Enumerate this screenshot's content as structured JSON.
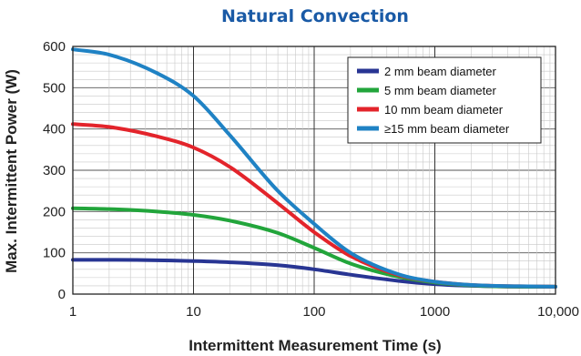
{
  "chart_data": {
    "type": "line",
    "title": "Natural Convection",
    "xlabel": "Intermittent Measurement Time (s)",
    "ylabel": "Max. Intermittent Power (W)",
    "x_scale": "log",
    "xlim": [
      1,
      10000
    ],
    "ylim": [
      0,
      600
    ],
    "x_ticks": [
      1,
      10,
      100,
      1000,
      10000
    ],
    "x_tick_labels": [
      "1",
      "10",
      "100",
      "1000",
      "10,000"
    ],
    "y_ticks": [
      0,
      100,
      200,
      300,
      400,
      500,
      600
    ],
    "y_tick_labels": [
      "0",
      "100",
      "200",
      "300",
      "400",
      "500",
      "600"
    ],
    "grid": true,
    "legend_position": "top-right",
    "colors": {
      "title": "#1a5aa6"
    },
    "series": [
      {
        "name": "2 mm beam diameter",
        "color": "#283593",
        "x": [
          1,
          2,
          5,
          10,
          20,
          50,
          100,
          200,
          500,
          1000,
          2000,
          5000,
          10000
        ],
        "y": [
          83,
          83,
          82,
          80,
          77,
          70,
          60,
          47,
          32,
          24,
          20,
          18,
          18
        ]
      },
      {
        "name": "5 mm beam diameter",
        "color": "#22a53b",
        "x": [
          1,
          2,
          5,
          10,
          20,
          50,
          100,
          200,
          500,
          1000,
          2000,
          5000,
          10000
        ],
        "y": [
          208,
          206,
          200,
          192,
          178,
          148,
          112,
          74,
          42,
          28,
          21,
          18,
          18
        ]
      },
      {
        "name": "10 mm beam diameter",
        "color": "#e3242b",
        "x": [
          1,
          2,
          5,
          10,
          20,
          50,
          100,
          200,
          500,
          1000,
          2000,
          5000,
          10000
        ],
        "y": [
          412,
          405,
          382,
          355,
          308,
          220,
          150,
          92,
          46,
          30,
          22,
          19,
          18
        ]
      },
      {
        "name": "≥15 mm beam diameter",
        "color": "#1f82c4",
        "x": [
          1,
          2,
          5,
          10,
          20,
          50,
          100,
          200,
          500,
          1000,
          2000,
          5000,
          10000
        ],
        "y": [
          593,
          580,
          535,
          480,
          385,
          250,
          170,
          100,
          48,
          30,
          22,
          19,
          18
        ]
      }
    ]
  }
}
